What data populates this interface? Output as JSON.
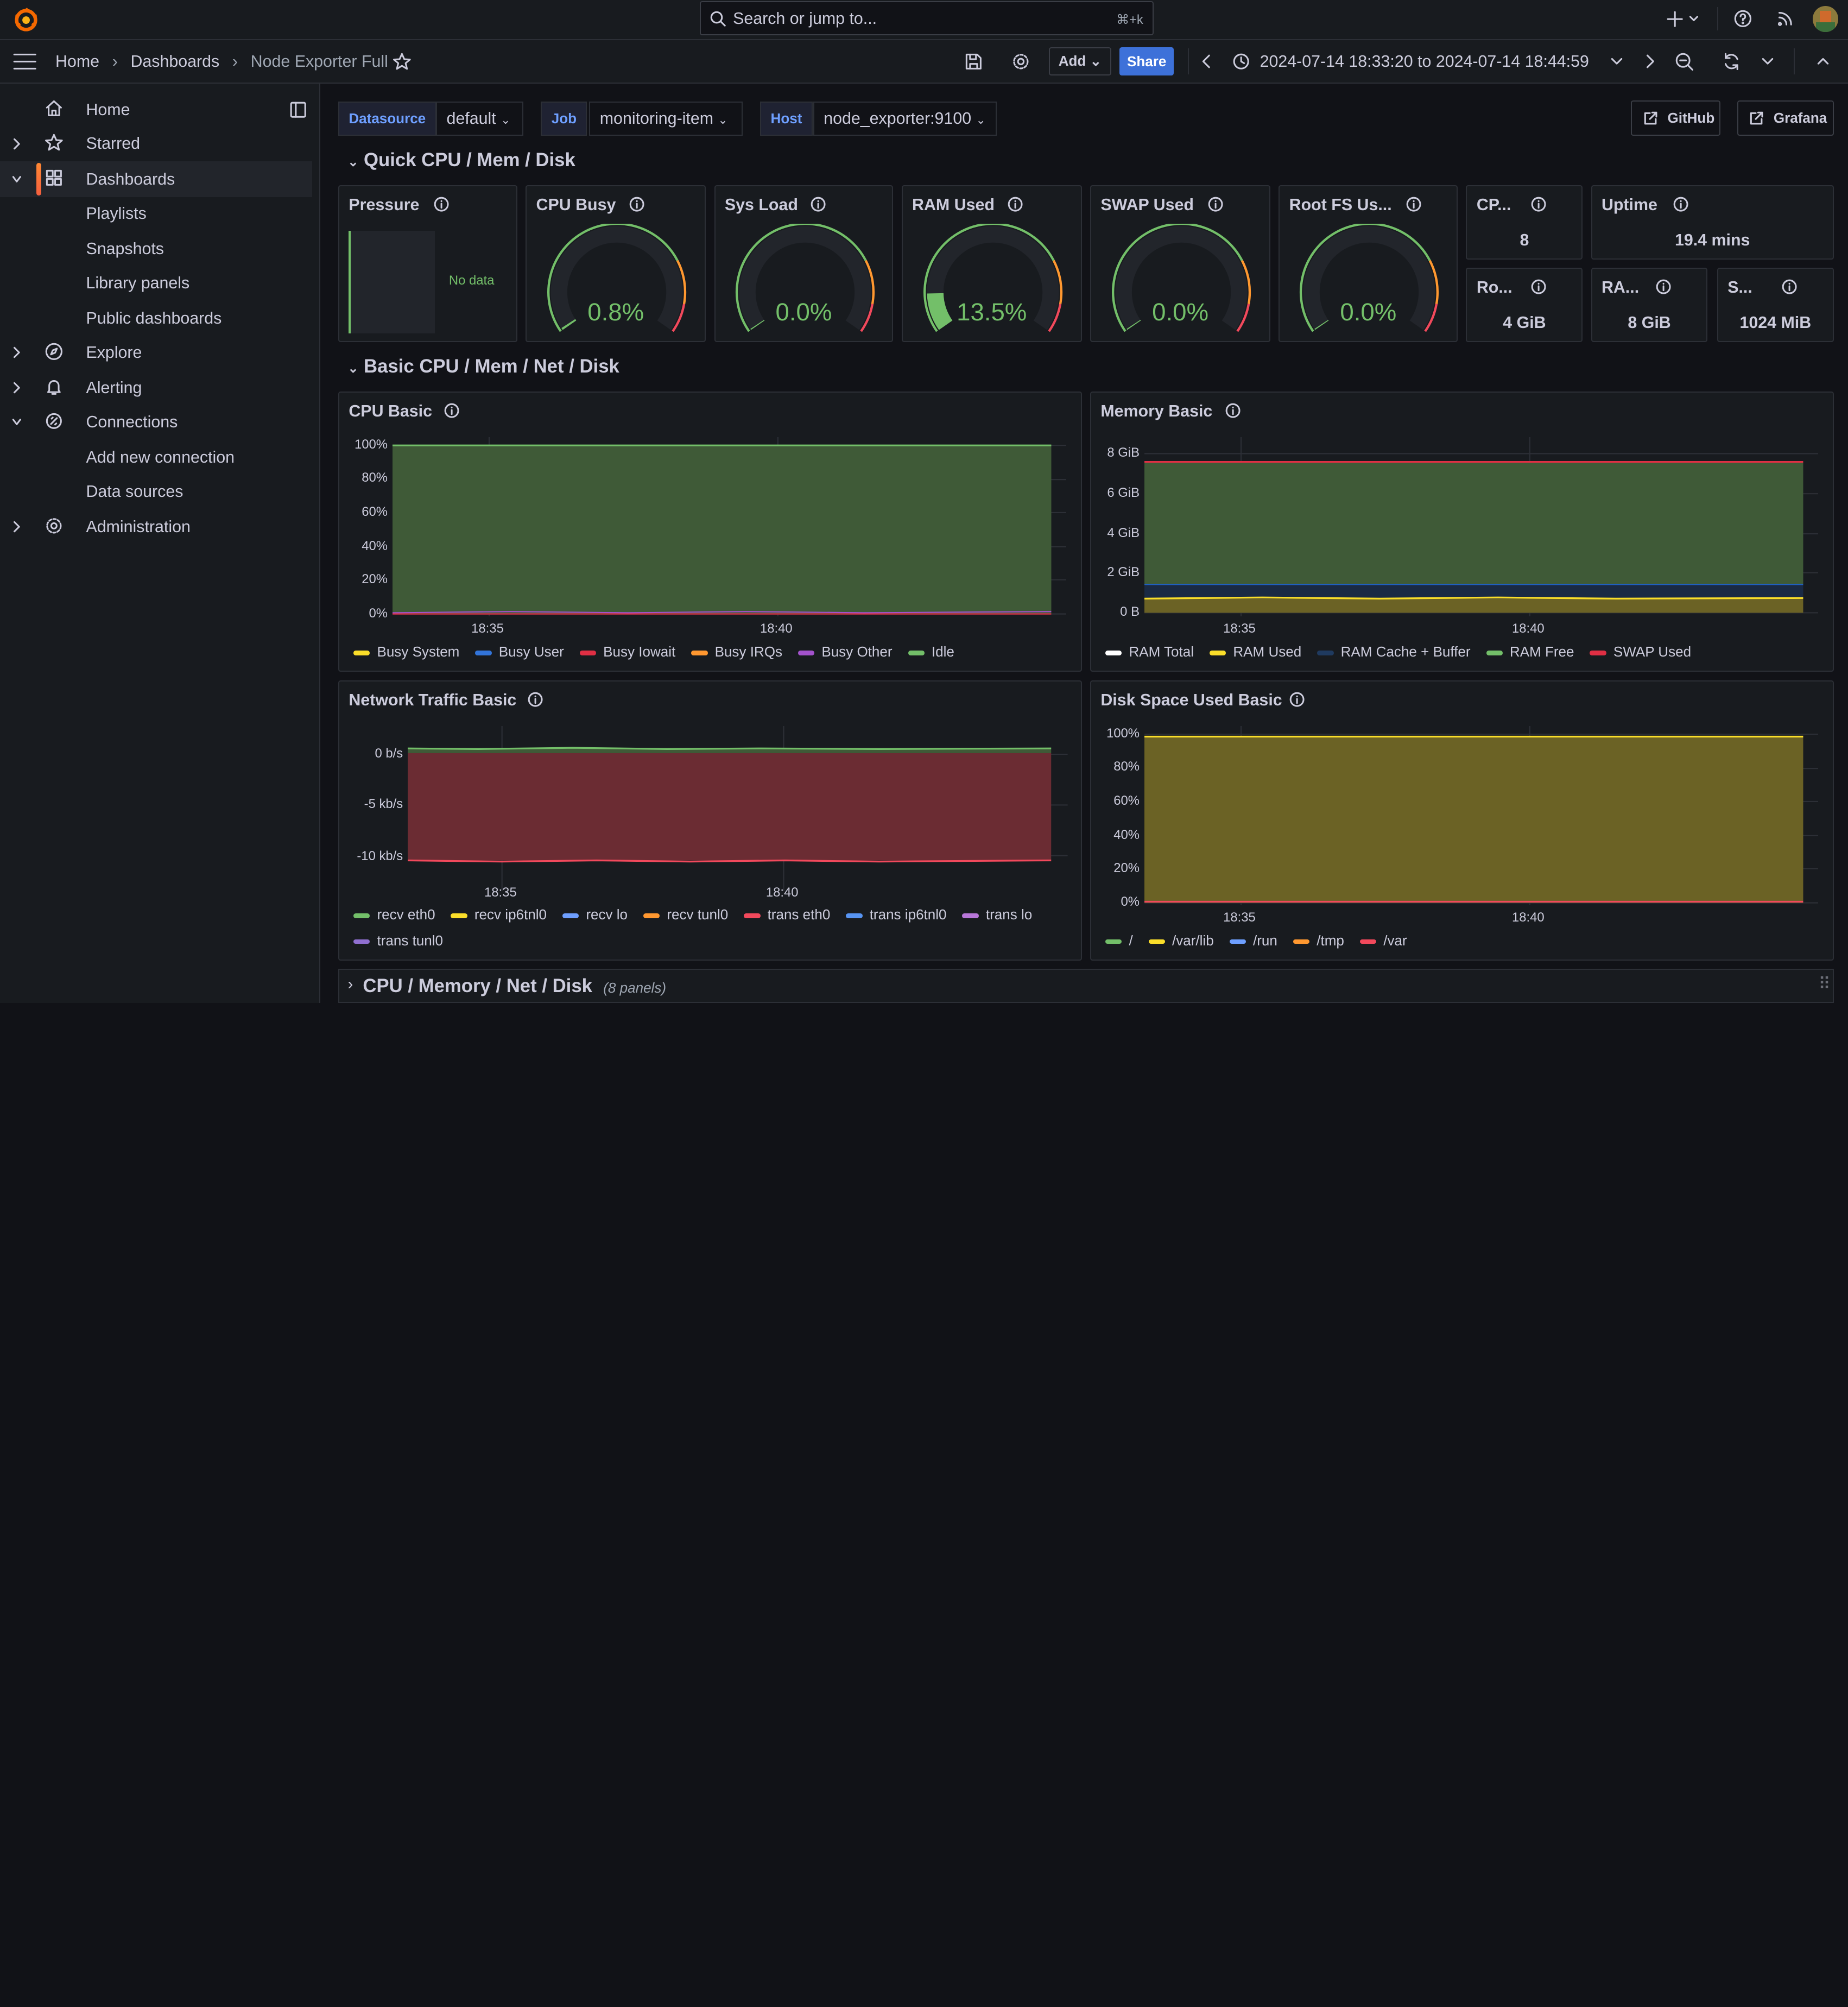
{
  "topbar": {
    "search_placeholder": "Search or jump to...",
    "search_shortcut": "⌘+k"
  },
  "breadcrumb": [
    "Home",
    "Dashboards",
    "Node Exporter Full"
  ],
  "toolbar": {
    "add_label": "Add",
    "share_label": "Share",
    "time_range": "2024-07-14 18:33:20 to 2024-07-14 18:44:59"
  },
  "sidebar": {
    "items": [
      {
        "label": "Home"
      },
      {
        "label": "Starred"
      },
      {
        "label": "Dashboards"
      },
      {
        "label": "Playlists"
      },
      {
        "label": "Snapshots"
      },
      {
        "label": "Library panels"
      },
      {
        "label": "Public dashboards"
      },
      {
        "label": "Explore"
      },
      {
        "label": "Alerting"
      },
      {
        "label": "Connections"
      },
      {
        "label": "Add new connection"
      },
      {
        "label": "Data sources"
      },
      {
        "label": "Administration"
      }
    ]
  },
  "variables": {
    "datasource_label": "Datasource",
    "datasource_value": "default",
    "job_label": "Job",
    "job_value": "monitoring-item",
    "host_label": "Host",
    "host_value": "node_exporter:9100"
  },
  "links": {
    "github": "GitHub",
    "grafana": "Grafana"
  },
  "rows": {
    "quick": "Quick CPU / Mem / Disk",
    "basic": "Basic CPU / Mem / Net / Disk",
    "full": "CPU / Memory / Net / Disk",
    "full_count": "(8 panels)"
  },
  "quick_panels": {
    "pressure": {
      "title": "Pressure",
      "nodata": "No data"
    },
    "gauges": [
      {
        "title": "CPU Busy",
        "value": "0.8%",
        "fraction": 0.008
      },
      {
        "title": "Sys Load",
        "value": "0.0%",
        "fraction": 0.0
      },
      {
        "title": "RAM Used",
        "value": "13.5%",
        "fraction": 0.135
      },
      {
        "title": "SWAP Used",
        "value": "0.0%",
        "fraction": 0.0
      },
      {
        "title": "Root FS Us...",
        "value": "0.0%",
        "fraction": 0.0
      }
    ],
    "stats": [
      {
        "title": "CP...",
        "value": "8"
      },
      {
        "title": "Uptime",
        "value": "19.4 mins"
      },
      {
        "title": "Ro...",
        "value": "4 GiB"
      },
      {
        "title": "RA...",
        "value": "8 GiB"
      },
      {
        "title": "S...",
        "value": "1024 MiB"
      }
    ]
  },
  "panels": {
    "cpu_basic": {
      "title": "CPU Basic",
      "yticks": [
        "100%",
        "80%",
        "60%",
        "40%",
        "20%",
        "0%"
      ],
      "xticks": [
        "18:35",
        "18:40"
      ],
      "legend": [
        {
          "name": "Busy System",
          "color": "#fade2a"
        },
        {
          "name": "Busy User",
          "color": "#3274d9"
        },
        {
          "name": "Busy Iowait",
          "color": "#e02f44"
        },
        {
          "name": "Busy IRQs",
          "color": "#ff9830"
        },
        {
          "name": "Busy Other",
          "color": "#a352cc"
        },
        {
          "name": "Idle",
          "color": "#73bf69"
        }
      ]
    },
    "memory_basic": {
      "title": "Memory Basic",
      "yticks": [
        "8 GiB",
        "6 GiB",
        "4 GiB",
        "2 GiB",
        "0 B"
      ],
      "xticks": [
        "18:35",
        "18:40"
      ],
      "legend": [
        {
          "name": "RAM Total",
          "color": "#ffffff"
        },
        {
          "name": "RAM Used",
          "color": "#fade2a"
        },
        {
          "name": "RAM Cache + Buffer",
          "color": "#1f3a5f"
        },
        {
          "name": "RAM Free",
          "color": "#73bf69"
        },
        {
          "name": "SWAP Used",
          "color": "#e02f44"
        }
      ]
    },
    "network_basic": {
      "title": "Network Traffic Basic",
      "yticks": [
        "0 b/s",
        "-5 kb/s",
        "-10 kb/s"
      ],
      "xticks": [
        "18:35",
        "18:40"
      ],
      "legend": [
        {
          "name": "recv eth0",
          "color": "#73bf69"
        },
        {
          "name": "recv ip6tnl0",
          "color": "#fade2a"
        },
        {
          "name": "recv lo",
          "color": "#6e9fff"
        },
        {
          "name": "recv tunl0",
          "color": "#ff9830"
        },
        {
          "name": "trans eth0",
          "color": "#f2495c"
        },
        {
          "name": "trans ip6tnl0",
          "color": "#5794f2"
        },
        {
          "name": "trans lo",
          "color": "#b877d9"
        },
        {
          "name": "trans tunl0",
          "color": "#8f6fd0"
        }
      ]
    },
    "disk_basic": {
      "title": "Disk Space Used Basic",
      "yticks": [
        "100%",
        "80%",
        "60%",
        "40%",
        "20%",
        "0%"
      ],
      "xticks": [
        "18:35",
        "18:40"
      ],
      "legend": [
        {
          "name": "/",
          "color": "#73bf69"
        },
        {
          "name": "/var/lib",
          "color": "#fade2a"
        },
        {
          "name": "/run",
          "color": "#6e9fff"
        },
        {
          "name": "/tmp",
          "color": "#ff9830"
        },
        {
          "name": "/var",
          "color": "#f2495c"
        }
      ]
    }
  }
}
